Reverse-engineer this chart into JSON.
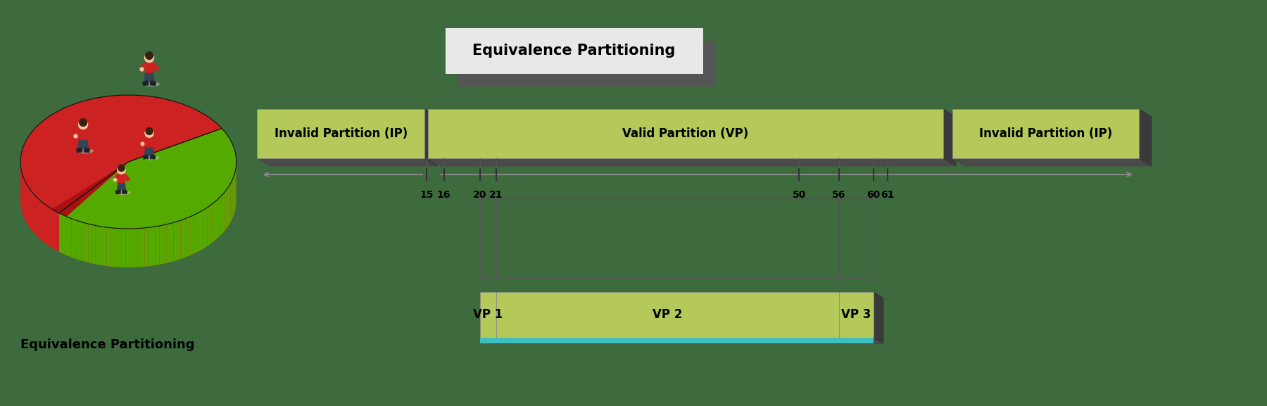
{
  "bg_color": "#3d6b3d",
  "title_box_text": "Equivalence Partitioning",
  "title_box_bg": "#e8e8e8",
  "title_box_shadow": "#555555",
  "bar_top_color": "#b5c95a",
  "bar_side_color": "#4a4a4a",
  "ip_left_label": "Invalid Partition (IP)",
  "vp_label": "Valid Partition (VP)",
  "ip_right_label": "Invalid Partition (IP)",
  "tick_labels": [
    "15",
    "16",
    "20",
    "21",
    "50",
    "56",
    "60",
    "61"
  ],
  "vp1_label": "VP 1",
  "vp2_label": "VP 2",
  "vp3_label": "VP 3",
  "vp_box_color": "#b5c95a",
  "vp_box_bottom_color": "#3dbfbf",
  "bottom_label": "Equivalence Partitioning",
  "arrow_color": "#888888",
  "line_color": "#555555",
  "bracket_color": "#555555",
  "pie_red": "#cc2222",
  "pie_green": "#55aa00",
  "pie_red_dark": "#882222",
  "pie_red2": "#aa1111"
}
